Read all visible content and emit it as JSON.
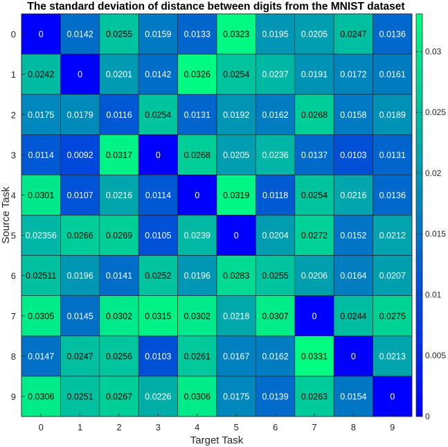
{
  "chart_data": {
    "type": "heatmap",
    "title": "The standard deviation of distance between digits from the MNIST dataset",
    "xlabel": "Target Task",
    "ylabel": "Source Task",
    "x_categories": [
      "0",
      "1",
      "2",
      "3",
      "4",
      "5",
      "6",
      "7",
      "8",
      "9"
    ],
    "y_categories": [
      "0",
      "1",
      "2",
      "3",
      "4",
      "5",
      "6",
      "7",
      "8",
      "9"
    ],
    "values": [
      [
        0,
        0.0142,
        0.0255,
        0.0159,
        0.0133,
        0.0323,
        0.0195,
        0.0205,
        0.0247,
        0.0136
      ],
      [
        0.0242,
        0,
        0.0201,
        0.0142,
        0.0326,
        0.0254,
        0.0237,
        0.0191,
        0.0172,
        0.0161
      ],
      [
        0.0175,
        0.0179,
        0.0116,
        0.0254,
        0.0131,
        0.0192,
        0.0162,
        0.0268,
        0.0158,
        0.0189
      ],
      [
        0.0114,
        0.0092,
        0.0317,
        0,
        0.0268,
        0.0205,
        0.0236,
        0.0137,
        0.0103,
        0.0131
      ],
      [
        0.0301,
        0.0107,
        0.0216,
        0.0114,
        0,
        0.0319,
        0.0118,
        0.0254,
        0.0216,
        0.0136
      ],
      [
        0.02356,
        0.0266,
        0.0269,
        0.0105,
        0.0239,
        0,
        0.0204,
        0.0272,
        0.0152,
        0.0212
      ],
      [
        0.02511,
        0.0196,
        0.0141,
        0.0252,
        0.0196,
        0.0283,
        0.0255,
        0.0206,
        0.0164,
        0.0207
      ],
      [
        0.0305,
        0.0145,
        0.0302,
        0.0315,
        0.0302,
        0.0218,
        0.0307,
        0,
        0.0244,
        0.0275
      ],
      [
        0.0147,
        0.0247,
        0.0256,
        0.0103,
        0.0261,
        0.0167,
        0.0162,
        0.0331,
        0,
        0.0213
      ],
      [
        0.0306,
        0.0251,
        0.0267,
        0.0226,
        0.0306,
        0.0175,
        0.0139,
        0.0263,
        0.0154,
        0
      ]
    ],
    "labels": [
      [
        "0",
        "0.0142",
        "0.0255",
        "0.0159",
        "0.0133",
        "0.0323",
        "0.0195",
        "0.0205",
        "0.0247",
        "0.0136"
      ],
      [
        "0.0242",
        "0",
        "0.0201",
        "0.0142",
        "0.0326",
        "0.0254",
        "0.0237",
        "0.0191",
        "0.0172",
        "0.0161"
      ],
      [
        "0.0175",
        "0.0179",
        "0.0116",
        "0.0254",
        "0.0131",
        "0.0192",
        "0.0162",
        "0.0268",
        "0.0158",
        "0.0189"
      ],
      [
        "0.0114",
        "0.0092",
        "0.0317",
        "0",
        "0.0268",
        "0.0205",
        "0.0236",
        "0.0137",
        "0.0103",
        "0.0131"
      ],
      [
        "0.0301",
        "0.0107",
        "0.0216",
        "0.0114",
        "0",
        "0.0319",
        "0.0118",
        "0.0254",
        "0.0216",
        "0.0136"
      ],
      [
        "0.02356",
        "0.0266",
        "0.0269",
        "0.0105",
        "0.0239",
        "0",
        "0.0204",
        "0.0272",
        "0.0152",
        "0.0212"
      ],
      [
        "0.02511",
        "0.0196",
        "0.0141",
        "0.0252",
        "0.0196",
        "0.0283",
        "0.0255",
        "0.0206",
        "0.0164",
        "0.0207"
      ],
      [
        "0.0305",
        "0.0145",
        "0.0302",
        "0.0315",
        "0.0302",
        "0.0218",
        "0.0307",
        "0",
        "0.0244",
        "0.0275"
      ],
      [
        "0.0147",
        "0.0247",
        "0.0256",
        "0.0103",
        "0.0261",
        "0.0167",
        "0.0162",
        "0.0331",
        "0",
        "0.0213"
      ],
      [
        "0.0306",
        "0.0251",
        "0.0267",
        "0.0226",
        "0.0306",
        "0.0175",
        "0.0139",
        "0.0263",
        "0.0154",
        "0"
      ]
    ],
    "colorbar": {
      "range": [
        0,
        0.0331
      ],
      "ticks": [
        0,
        0.005,
        0.01,
        0.015,
        0.02,
        0.025,
        0.03
      ],
      "tick_labels": [
        "0",
        "0.005",
        "0.01",
        "0.015",
        "0.02",
        "0.025",
        "0.03"
      ],
      "colormap": "winter",
      "color_low": "#0000ff",
      "color_high": "#00ff80"
    },
    "label_threshold": 0.024
  }
}
